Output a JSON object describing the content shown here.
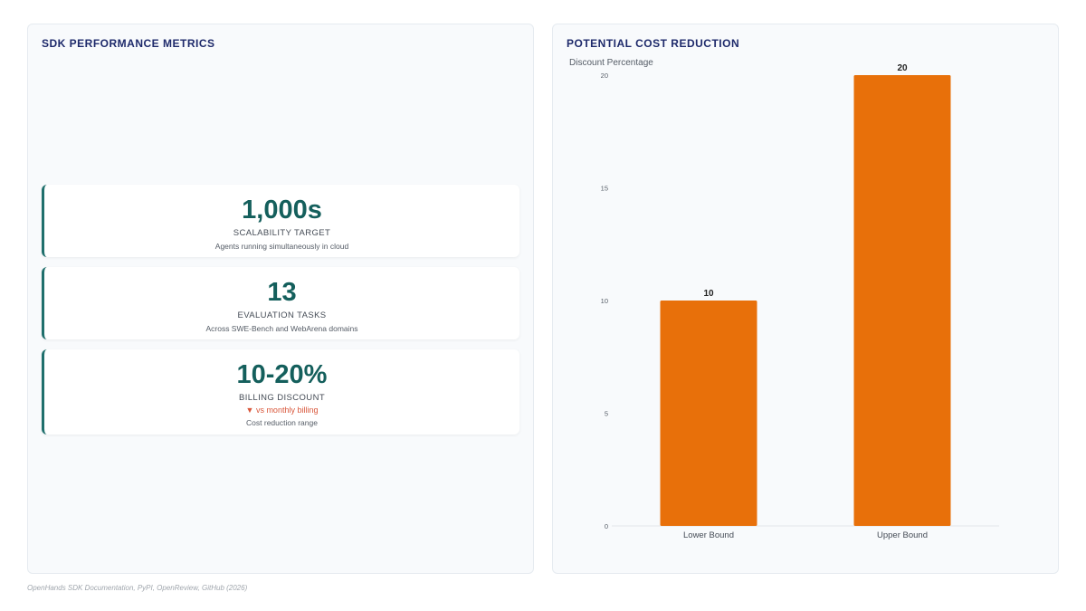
{
  "left_panel": {
    "title": "SDK PERFORMANCE METRICS",
    "metrics": [
      {
        "value": "1,000s",
        "label": "SCALABILITY TARGET",
        "sub": "Agents running simultaneously in cloud"
      },
      {
        "value": "13",
        "label": "EVALUATION TASKS",
        "sub": "Across SWE-Bench and WebArena domains"
      },
      {
        "value": "10-20%",
        "label": "BILLING DISCOUNT",
        "trend": "▼ vs monthly billing",
        "sub": "Cost reduction range"
      }
    ]
  },
  "right_panel": {
    "title": "POTENTIAL COST REDUCTION"
  },
  "chart_data": {
    "type": "bar",
    "categories": [
      "Lower Bound",
      "Upper Bound"
    ],
    "values": [
      10,
      20
    ],
    "ylabel": "Discount Percentage",
    "ylim": [
      0,
      20
    ],
    "yticks": [
      0,
      5,
      10,
      15,
      20
    ],
    "bar_color": "#e8700a",
    "data_labels": true,
    "grid": false
  },
  "footer": {
    "source": "OpenHands SDK Documentation, PyPI, OpenReview, GitHub (2026)"
  },
  "colors": {
    "accent": "#1f6f6c",
    "title": "#1e2a6b",
    "trend_down": "#d9573b"
  }
}
